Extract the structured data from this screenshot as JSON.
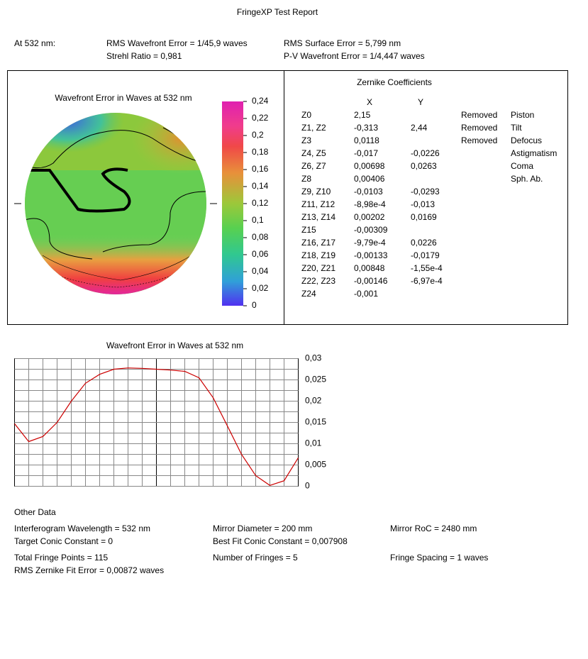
{
  "title": "FringeXP Test Report",
  "summary": {
    "wavelength": "At 532 nm:",
    "rms_wavefront": "RMS Wavefront Error = 1/45,9 waves",
    "strehl": "Strehl Ratio = 0,981",
    "rms_surface": "RMS Surface Error = 5,799 nm",
    "pv_wavefront": "P-V Wavefront Error = 1/4,447 waves"
  },
  "map": {
    "title": "Wavefront Error in Waves at 532 nm",
    "colorbar_labels": [
      "0,24",
      "0,22",
      "0,2",
      "0,18",
      "0,16",
      "0,14",
      "0,12",
      "0,1",
      "0,08",
      "0,06",
      "0,04",
      "0,02",
      "0"
    ]
  },
  "zernike": {
    "title": "Zernike Coefficients",
    "headers": [
      "X",
      "Y"
    ],
    "rows": [
      {
        "term": "Z0",
        "x": "2,15",
        "status": "Removed",
        "name": "Piston"
      },
      {
        "term": "Z1, Z2",
        "x": "-0,313",
        "y": "2,44",
        "status": "Removed",
        "name": "Tilt"
      },
      {
        "term": "Z3",
        "x": "0,0118",
        "status": "Removed",
        "name": "Defocus"
      },
      {
        "term": "Z4, Z5",
        "x": "-0,017",
        "y": "-0,0226",
        "name": "Astigmatism"
      },
      {
        "term": "Z6, Z7",
        "x": "0,00698",
        "y": "0,0263",
        "name": "Coma"
      },
      {
        "term": "Z8",
        "x": "0,00406",
        "name": "Sph. Ab."
      },
      {
        "term": "Z9, Z10",
        "x": "-0,0103",
        "y": "-0,0293"
      },
      {
        "term": "Z11, Z12",
        "x": "-8,98e-4",
        "y": "-0,013"
      },
      {
        "term": "Z13, Z14",
        "x": "0,00202",
        "y": "0,0169"
      },
      {
        "term": "Z15",
        "x": "-0,00309"
      },
      {
        "term": "Z16, Z17",
        "x": "-9,79e-4",
        "y": "0,0226"
      },
      {
        "term": "Z18, Z19",
        "x": "-0,00133",
        "y": "-0,0179"
      },
      {
        "term": "Z20, Z21",
        "x": "0,00848",
        "y": "-1,55e-4"
      },
      {
        "term": "Z22, Z23",
        "x": "-0,00146",
        "y": "-6,97e-4"
      },
      {
        "term": "Z24",
        "x": "-0,001"
      }
    ]
  },
  "chart_data": {
    "type": "line",
    "title": "Wavefront Error in Waves at 532 nm",
    "categories": [
      null,
      null,
      null,
      null,
      null,
      null,
      null,
      null,
      null,
      null,
      null,
      null,
      null,
      null,
      null,
      null,
      null,
      null,
      null,
      null,
      null
    ],
    "values": [
      0.0147,
      0.0105,
      0.0117,
      0.015,
      0.02,
      0.0242,
      0.0263,
      0.0275,
      0.0278,
      0.0277,
      0.0275,
      0.0273,
      0.027,
      0.0255,
      0.0208,
      0.0142,
      0.0075,
      0.0025,
      0.0002,
      0.0013,
      0.0067
    ],
    "color": "#cc0000",
    "ylim": [
      0,
      0.03
    ],
    "yticks": [
      0,
      {
        "value": 0.005,
        "label": "0,005"
      },
      {
        "value": 0.01,
        "label": "0,01"
      },
      {
        "value": 0.015,
        "label": "0,015"
      },
      {
        "value": 0.02,
        "label": "0,02"
      },
      {
        "value": 0.025,
        "label": "0,025"
      },
      {
        "value": 0.03,
        "label": "0,03"
      }
    ],
    "grid": true
  },
  "other": {
    "title": "Other Data",
    "items": [
      "Interferogram Wavelength = 532 nm",
      "Mirror Diameter = 200 mm",
      "Mirror RoC = 2480 mm",
      "Target Conic Constant = 0",
      "Best Fit Conic Constant = 0,007908",
      "Total Fringe Points = 115",
      "Number of Fringes = 5",
      "Fringe Spacing = 1 waves",
      "RMS Zernike Fit Error = 0,00872 waves"
    ]
  }
}
